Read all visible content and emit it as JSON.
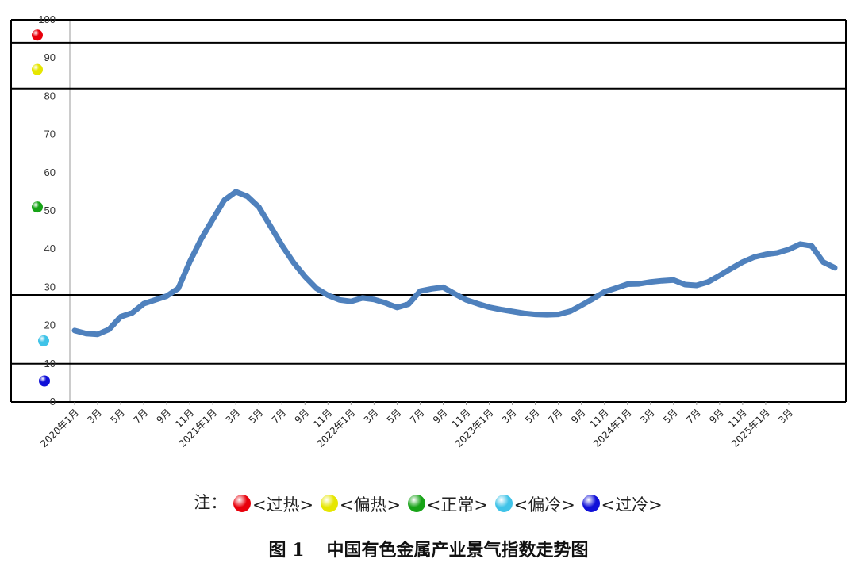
{
  "chart_data": {
    "type": "line",
    "ylim": [
      0,
      100
    ],
    "yticks": [
      0,
      10,
      20,
      30,
      40,
      50,
      60,
      70,
      80,
      90,
      100
    ],
    "x_labels": [
      "2020年1月",
      "3月",
      "5月",
      "7月",
      "9月",
      "11月",
      "2021年1月",
      "3月",
      "5月",
      "7月",
      "9月",
      "11月",
      "2022年1月",
      "3月",
      "5月",
      "7月",
      "9月",
      "11月",
      "2023年1月",
      "3月",
      "5月",
      "7月",
      "9月",
      "11月",
      "2024年1月",
      "3月",
      "5月",
      "7月",
      "9月",
      "11月",
      "2025年1月",
      "3月"
    ],
    "series": [
      {
        "color": "#4F81BD",
        "values": [
          18.7,
          17.9,
          17.7,
          19.0,
          22.3,
          23.3,
          25.7,
          26.7,
          27.7,
          29.7,
          36.7,
          42.7,
          47.8,
          52.8,
          55.0,
          53.8,
          51.0,
          46.0,
          41.0,
          36.5,
          32.8,
          29.7,
          27.9,
          26.7,
          26.3,
          27.2,
          26.8,
          25.9,
          24.7,
          25.6,
          29.0,
          29.6,
          30.0,
          28.3,
          26.7,
          25.7,
          24.8,
          24.2,
          23.7,
          23.2,
          22.9,
          22.8,
          22.9,
          23.7,
          25.3,
          27.0,
          28.8,
          29.8,
          30.8,
          30.9,
          31.4,
          31.7,
          31.9,
          30.7,
          30.5,
          31.4,
          33.1,
          34.9,
          36.6,
          37.9,
          38.6,
          39.0,
          39.9,
          41.3,
          40.8,
          36.6,
          35.1
        ]
      }
    ],
    "bands": [
      {
        "status": "过热",
        "from": 94,
        "to": 100,
        "color": "#E8000B"
      },
      {
        "status": "偏热",
        "from": 82,
        "to": 94,
        "color": "#E6E600"
      },
      {
        "status": "正常",
        "from": 28,
        "to": 82,
        "color": "#17A317"
      },
      {
        "status": "偏冷",
        "from": 10,
        "to": 28,
        "color": "#3FC3E8"
      },
      {
        "status": "过冷",
        "from": 0,
        "to": 10,
        "color": "#1010D8"
      }
    ],
    "grid": false
  },
  "legend": {
    "prefix": "注：",
    "items": [
      {
        "text": "<过热>",
        "color": "#E8000B"
      },
      {
        "text": "<偏热>",
        "color": "#E6E600"
      },
      {
        "text": "<正常>",
        "color": "#17A317"
      },
      {
        "text": "<偏冷>",
        "color": "#3FC3E8"
      },
      {
        "text": "<过冷>",
        "color": "#1010D8"
      }
    ]
  },
  "caption": {
    "label": "图 1",
    "title": "中国有色金属产业景气指数走势图"
  }
}
